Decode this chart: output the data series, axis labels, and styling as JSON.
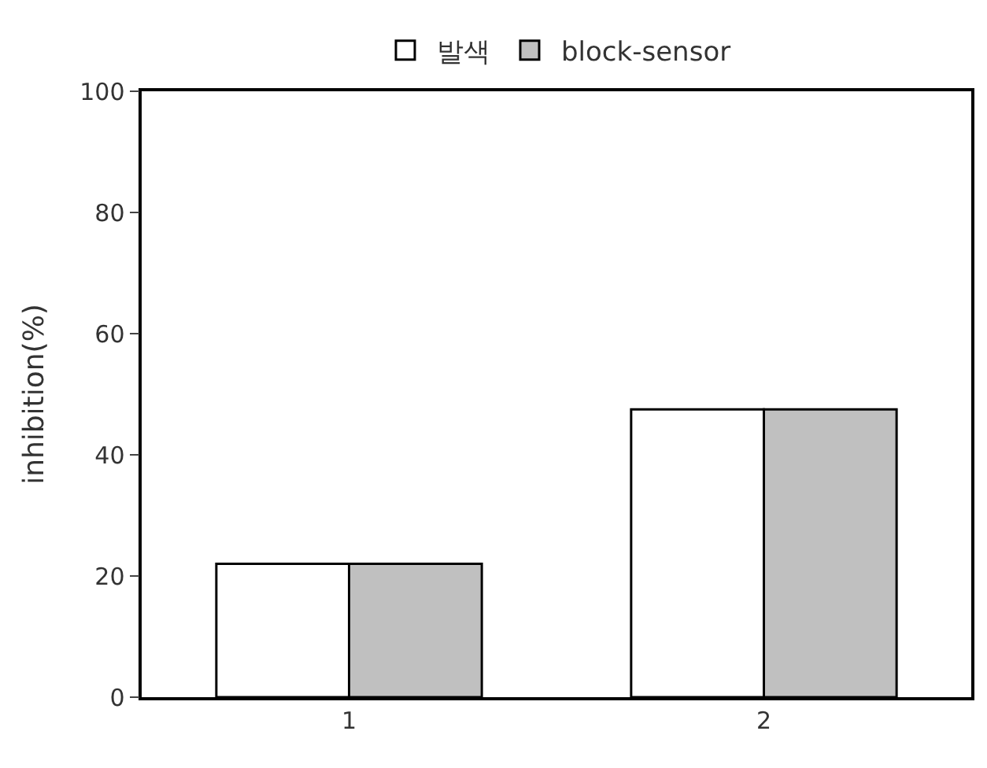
{
  "chart_data": {
    "type": "bar",
    "ylabel": "inhibition(%)",
    "categories": [
      "1",
      "2"
    ],
    "series": [
      {
        "name": "발색",
        "color": "#ffffff",
        "values": [
          22,
          47.5
        ]
      },
      {
        "name": "block-sensor",
        "color": "#c0c0c0",
        "values": [
          22,
          47.5
        ]
      }
    ],
    "ylim": [
      0,
      100
    ],
    "yticks": [
      0,
      20,
      40,
      60,
      80,
      100
    ],
    "legend": "top"
  }
}
